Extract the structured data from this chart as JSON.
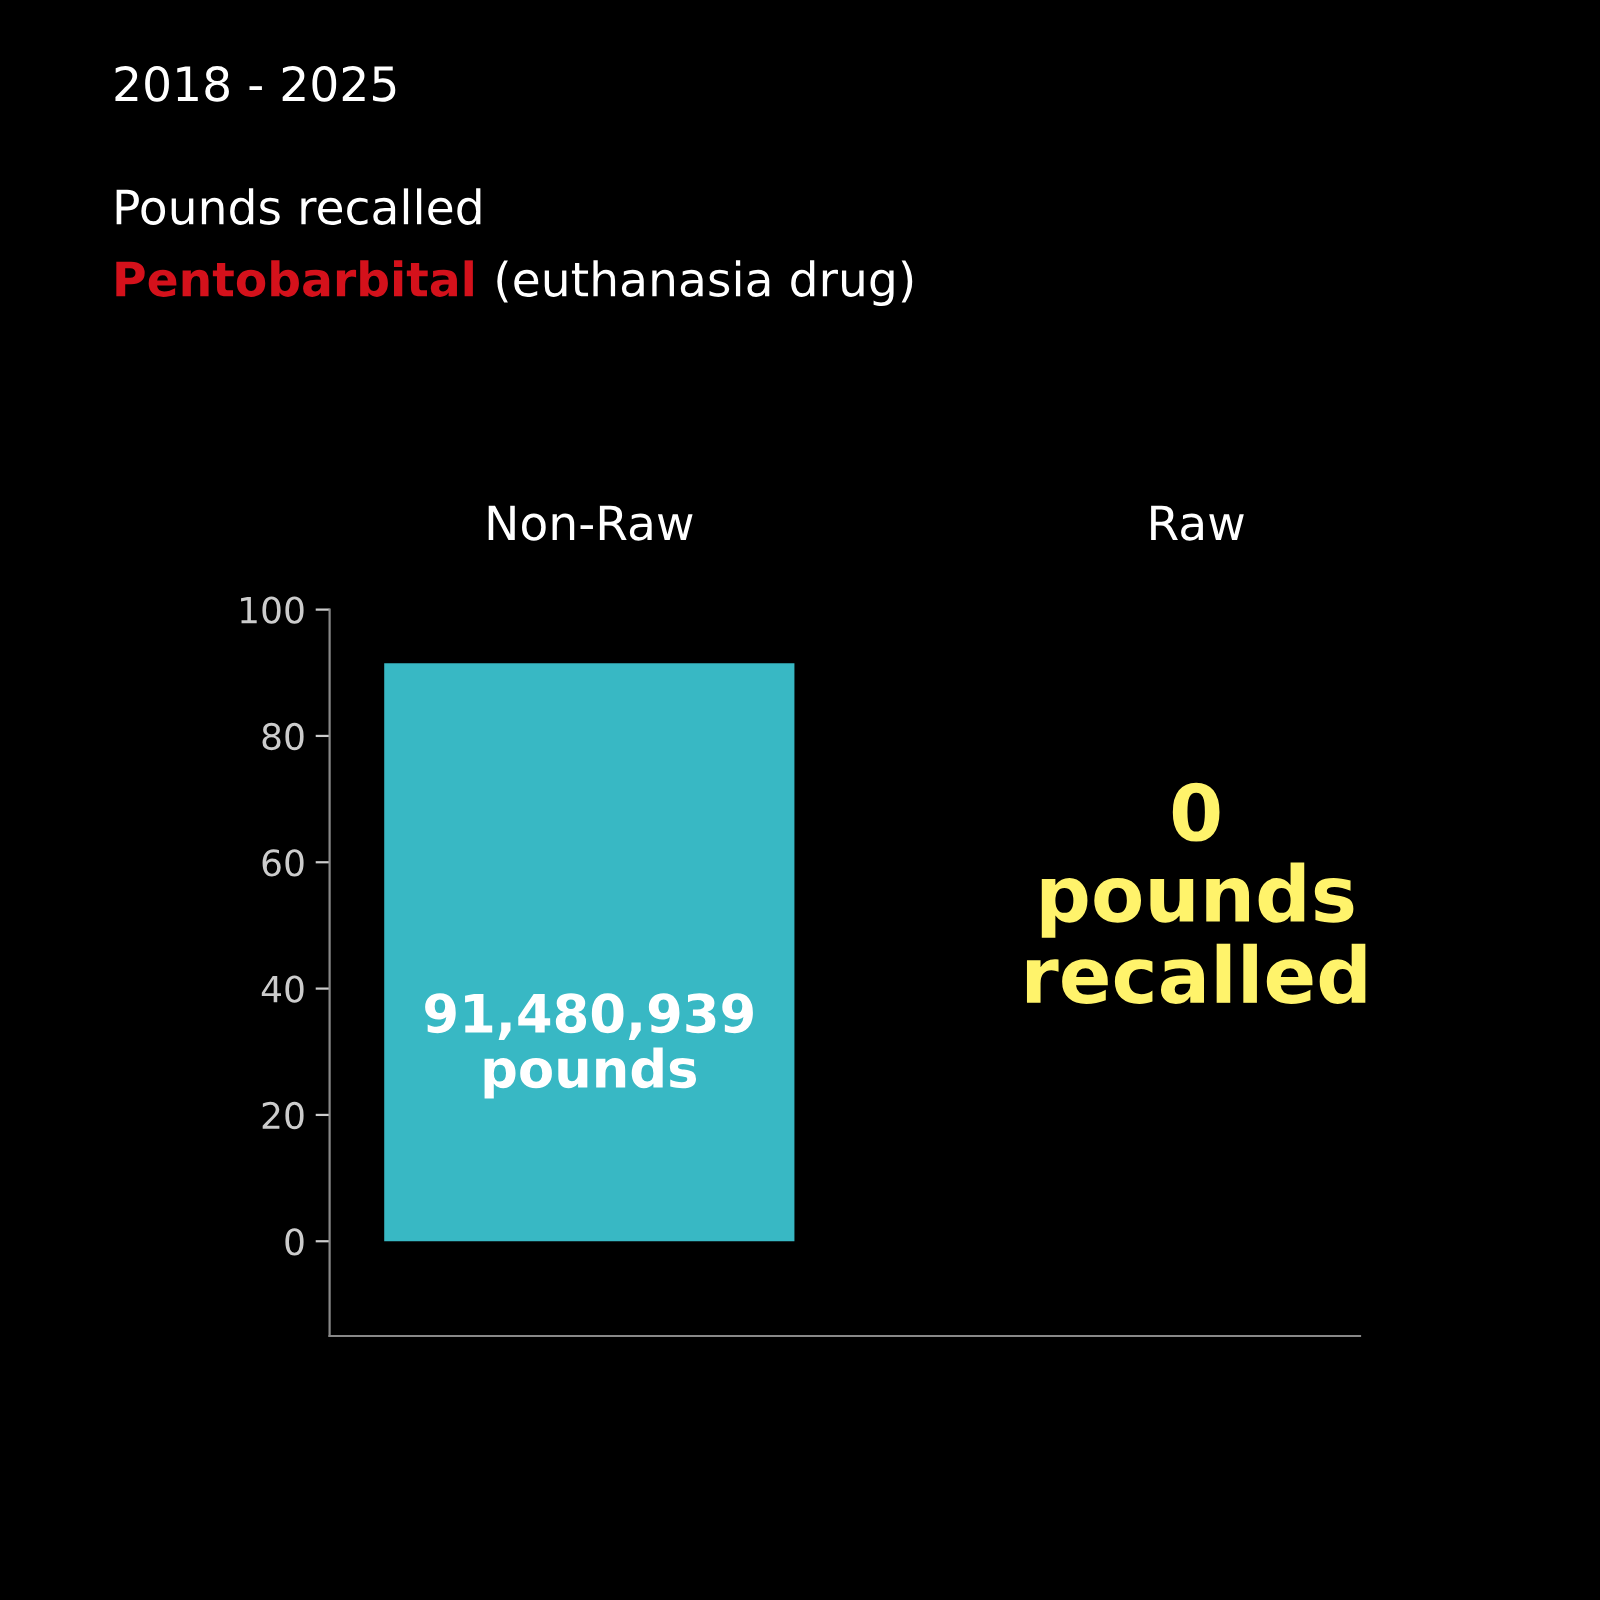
{
  "chart_data": {
    "type": "bar",
    "title": "2018 - 2025",
    "subtitle": "Pounds recalled",
    "annotations": [
      "Pentobarbital",
      "(euthanasia drug)",
      "91,480,939\npounds",
      "0\npounds\nrecalled"
    ],
    "categories": [
      "Non-Raw",
      "Raw"
    ],
    "values": [
      91.5,
      0
    ],
    "colors": [
      "#38b8c4",
      "#38b8c4"
    ],
    "ylim": [
      -15,
      100
    ],
    "yticks": [
      0,
      20,
      40,
      60,
      80,
      100
    ],
    "grid": false,
    "legend": false
  }
}
